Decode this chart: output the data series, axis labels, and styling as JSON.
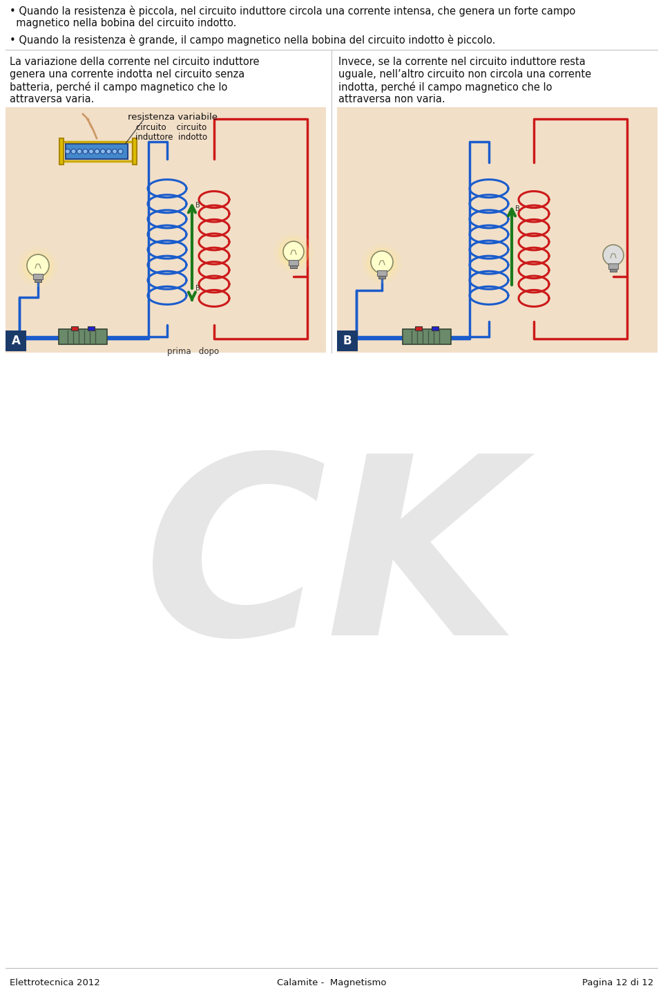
{
  "bg_color": "#ffffff",
  "bullet_text_1_line1": "• Quando la resistenza è piccola, nel circuito induttore circola una corrente intensa, che genera un forte campo",
  "bullet_text_1_line2": "  magnetico nella bobina del circuito indotto.",
  "bullet_text_2": "• Quando la resistenza è grande, il campo magnetico nella bobina del circuito indotto è piccolo.",
  "left_paragraph_line1": "La variazione della corrente nel circuito induttore",
  "left_paragraph_line2": "genera una corrente indotta nel circuito senza",
  "left_paragraph_line3": "batteria, perché il campo magnetico che lo",
  "left_paragraph_line4": "attraversa varia.",
  "right_paragraph_line1": "Invece, se la corrente nel circuito induttore resta",
  "right_paragraph_line2": "uguale, nell’altro circuito non circola una corrente",
  "right_paragraph_line3": "indotta, perché il campo magnetico che lo",
  "right_paragraph_line4": "attraversa non varia.",
  "footer_left": "Elettrotecnica 2012",
  "footer_center": "Calamite -  Magnetismo",
  "footer_right": "Pagina 12 di 12",
  "text_color": "#111111",
  "panel_bg": "#f2dfc8",
  "blue_wire": "#1a5ccc",
  "red_wire": "#cc1a1a",
  "green_arrow": "#1a7a1a",
  "label_color": "#111111",
  "font_size_body": 10.5,
  "font_size_footer": 9.5,
  "watermark_color": "#c8c8c8",
  "watermark_alpha": 0.45,
  "separator_line_color": "#bbbbbb",
  "panel_A_label_bg": "#1a3a6a",
  "panel_B_label_bg": "#1a3a6a"
}
